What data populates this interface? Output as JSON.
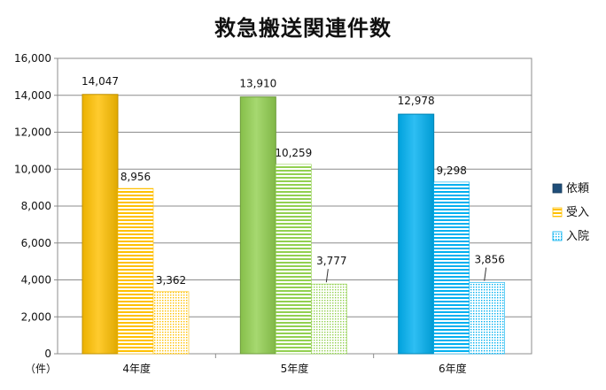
{
  "chart_data": {
    "type": "bar",
    "title": "救急搬送関連件数",
    "y_unit_label": "（件）",
    "categories": [
      "4年度",
      "5年度",
      "6年度"
    ],
    "series": [
      {
        "name": "依頼",
        "values": [
          14047,
          13910,
          12978
        ],
        "value_labels": [
          "14,047",
          "13,910",
          "12,978"
        ]
      },
      {
        "name": "受入",
        "values": [
          8956,
          10259,
          9298
        ],
        "value_labels": [
          "8,956",
          "10,259",
          "9,298"
        ]
      },
      {
        "name": "入院",
        "values": [
          3362,
          3777,
          3856
        ],
        "value_labels": [
          "3,362",
          "3,777",
          "3,856"
        ]
      }
    ],
    "category_colors": [
      "#ffc000",
      "#92d050",
      "#00b0f0"
    ],
    "ylim": [
      0,
      16000
    ],
    "yticks": [
      0,
      2000,
      4000,
      6000,
      8000,
      10000,
      12000,
      14000,
      16000
    ],
    "ytick_labels": [
      "0",
      "2,000",
      "4,000",
      "6,000",
      "8,000",
      "10,000",
      "12,000",
      "14,000",
      "16,000"
    ],
    "grid": true,
    "legend_position": "right"
  }
}
